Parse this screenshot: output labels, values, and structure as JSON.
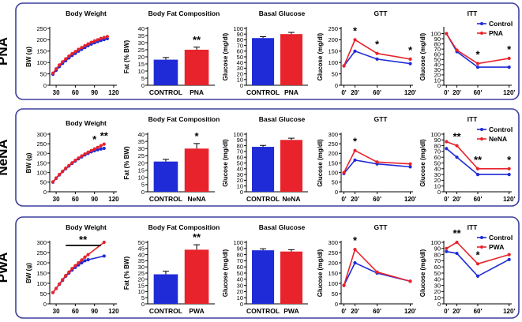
{
  "colors": {
    "control": "#1f2bd6",
    "treated": "#e8232b",
    "border": "#3d3f9e"
  },
  "common": {
    "titles": {
      "bw": "Body Weight",
      "bf": "Body Fat Composition",
      "bg": "Basal Glucose",
      "gtt": "GTT",
      "itt": "ITT"
    },
    "ylabels": {
      "bw": "BW (g)",
      "bf": "Fat (% BW)",
      "glc": "Glucose (mg/dl)"
    },
    "control_label": "CONTROL",
    "legend_control": "Control"
  },
  "chart_data": [
    {
      "group": "PNA",
      "treated_label": "PNA",
      "bw": {
        "type": "line",
        "yticks": [
          "0",
          "50",
          "100",
          "150",
          "200",
          "250"
        ],
        "ylim": [
          0,
          250
        ],
        "xticks": [
          "30",
          "60",
          "90",
          "120"
        ],
        "xlim": [
          20,
          125
        ],
        "x": [
          25,
          30,
          35,
          40,
          45,
          50,
          55,
          60,
          65,
          70,
          75,
          80,
          85,
          90,
          95,
          100,
          105,
          110
        ],
        "control": [
          48,
          66,
          82,
          96,
          108,
          120,
          131,
          140,
          150,
          158,
          166,
          174,
          181,
          187,
          192,
          197,
          201,
          205
        ],
        "treated": [
          53,
          72,
          89,
          103,
          116,
          128,
          139,
          148,
          158,
          166,
          174,
          182,
          189,
          195,
          200,
          206,
          210,
          214
        ],
        "sig": []
      },
      "bf": {
        "type": "bar",
        "yticks": [
          "0",
          "5",
          "10",
          "15",
          "20",
          "25",
          "30",
          "35",
          "40"
        ],
        "ylim": [
          0,
          40
        ],
        "control": 18,
        "control_err": 1.5,
        "treated": 25,
        "treated_err": 1.8,
        "sig": "**"
      },
      "bg": {
        "type": "bar",
        "yticks": [
          "0",
          "10",
          "20",
          "30",
          "40",
          "50",
          "60",
          "70",
          "80",
          "90",
          "100"
        ],
        "ylim": [
          0,
          100
        ],
        "control": 83,
        "control_err": 2.5,
        "treated": 90,
        "treated_err": 3,
        "sig": ""
      },
      "gtt": {
        "type": "line",
        "yticks": [
          "0",
          "50",
          "100",
          "150",
          "200",
          "250"
        ],
        "ylim": [
          0,
          250
        ],
        "xticks": [
          "0'",
          "20'",
          "60'",
          "120'"
        ],
        "xlim": [
          -5,
          125
        ],
        "x": [
          0,
          20,
          60,
          120
        ],
        "control": [
          85,
          150,
          115,
          95
        ],
        "treated": [
          85,
          200,
          140,
          115
        ],
        "sig": [
          "",
          "*",
          "*",
          "*"
        ]
      },
      "itt": {
        "type": "line",
        "yticks": [
          "0",
          "10",
          "20",
          "30",
          "40",
          "50",
          "60",
          "70",
          "80",
          "90",
          "100"
        ],
        "ylim": [
          0,
          110
        ],
        "xticks": [
          "0'",
          "20'",
          "60'",
          "120'"
        ],
        "xlim": [
          -5,
          125
        ],
        "x": [
          0,
          20,
          60,
          120
        ],
        "control": [
          100,
          65,
          35,
          35
        ],
        "treated": [
          100,
          68,
          42,
          52
        ],
        "sig": [
          "",
          "",
          "*",
          "*"
        ]
      }
    },
    {
      "group": "NeNA",
      "treated_label": "NeNA",
      "bw": {
        "type": "line",
        "yticks": [
          "0",
          "50",
          "100",
          "150",
          "200",
          "250",
          "300"
        ],
        "ylim": [
          0,
          300
        ],
        "xticks": [
          "30",
          "60",
          "90",
          "120"
        ],
        "xlim": [
          20,
          125
        ],
        "x": [
          25,
          30,
          35,
          40,
          45,
          50,
          55,
          60,
          65,
          70,
          75,
          80,
          85,
          90,
          95,
          100,
          105
        ],
        "control": [
          50,
          70,
          88,
          105,
          120,
          134,
          148,
          160,
          172,
          182,
          192,
          200,
          208,
          214,
          219,
          223,
          226
        ],
        "treated": [
          52,
          72,
          90,
          107,
          123,
          137,
          151,
          164,
          176,
          187,
          197,
          206,
          215,
          223,
          231,
          240,
          248
        ],
        "sig": [
          {
            "x": 90,
            "label": "*"
          },
          {
            "x": 105,
            "label": "**"
          }
        ]
      },
      "bf": {
        "type": "bar",
        "yticks": [
          "0",
          "5",
          "10",
          "15",
          "20",
          "25",
          "30",
          "35",
          "40"
        ],
        "ylim": [
          0,
          40
        ],
        "control": 21,
        "control_err": 1.5,
        "treated": 30,
        "treated_err": 3.5,
        "sig": "*"
      },
      "bg": {
        "type": "bar",
        "yticks": [
          "0",
          "10",
          "20",
          "30",
          "40",
          "50",
          "60",
          "70",
          "80",
          "90",
          "100"
        ],
        "ylim": [
          0,
          100
        ],
        "control": 78,
        "control_err": 2.5,
        "treated": 90,
        "treated_err": 3,
        "sig": ""
      },
      "gtt": {
        "type": "line",
        "yticks": [
          "0",
          "50",
          "100",
          "150",
          "200",
          "250",
          "300"
        ],
        "ylim": [
          0,
          300
        ],
        "xticks": [
          "0'",
          "20'",
          "60'",
          "120'"
        ],
        "xlim": [
          -5,
          125
        ],
        "x": [
          0,
          20,
          60,
          120
        ],
        "control": [
          95,
          165,
          145,
          130
        ],
        "treated": [
          100,
          215,
          155,
          145
        ],
        "sig": [
          "",
          "*",
          "",
          ""
        ]
      },
      "itt": {
        "type": "line",
        "yticks": [
          "0",
          "10",
          "20",
          "30",
          "40",
          "50",
          "60",
          "70",
          "80",
          "90",
          "100"
        ],
        "ylim": [
          0,
          100
        ],
        "xticks": [
          "0'",
          "20'",
          "60'",
          "120'"
        ],
        "xlim": [
          -5,
          125
        ],
        "x": [
          0,
          20,
          60,
          120
        ],
        "control": [
          75,
          60,
          30,
          30
        ],
        "treated": [
          87,
          80,
          40,
          40
        ],
        "sig": [
          "",
          "**",
          "**",
          "*"
        ]
      }
    },
    {
      "group": "PWA",
      "treated_label": "PWA",
      "bw": {
        "type": "line",
        "yticks": [
          "0",
          "50",
          "100",
          "150",
          "200",
          "250",
          "300"
        ],
        "ylim": [
          0,
          300
        ],
        "xticks": [
          "30",
          "60",
          "90",
          "120"
        ],
        "xlim": [
          20,
          125
        ],
        "x": [
          25,
          30,
          35,
          40,
          45,
          50,
          55,
          60,
          65,
          70,
          75,
          80,
          105
        ],
        "control": [
          55,
          75,
          95,
          115,
          135,
          150,
          165,
          178,
          190,
          200,
          210,
          215,
          233
        ],
        "treated": [
          55,
          75,
          97,
          118,
          138,
          155,
          172,
          186,
          200,
          214,
          228,
          240,
          300
        ],
        "sig": [
          {
            "x": 72,
            "label": "**",
            "bar": [
              45,
              100
            ]
          }
        ]
      },
      "bf": {
        "type": "bar",
        "yticks": [
          "0",
          "5",
          "10",
          "15",
          "20",
          "25",
          "30",
          "35",
          "40",
          "45",
          "50"
        ],
        "ylim": [
          0,
          50
        ],
        "control": 24,
        "control_err": 2.5,
        "treated": 44,
        "treated_err": 4,
        "sig": "**"
      },
      "bg": {
        "type": "bar",
        "yticks": [
          "0",
          "10",
          "20",
          "30",
          "40",
          "50",
          "60",
          "70",
          "80",
          "90",
          "100"
        ],
        "ylim": [
          0,
          100
        ],
        "control": 87,
        "control_err": 2.5,
        "treated": 85,
        "treated_err": 3,
        "sig": ""
      },
      "gtt": {
        "type": "line",
        "yticks": [
          "0",
          "50",
          "100",
          "150",
          "200",
          "250",
          "300"
        ],
        "ylim": [
          0,
          300
        ],
        "xticks": [
          "0'",
          "20'",
          "60'",
          "120'"
        ],
        "xlim": [
          -5,
          125
        ],
        "x": [
          0,
          20,
          60,
          120
        ],
        "control": [
          90,
          200,
          150,
          110
        ],
        "treated": [
          90,
          265,
          155,
          110
        ],
        "sig": [
          "",
          "*",
          "",
          ""
        ]
      },
      "itt": {
        "type": "line",
        "yticks": [
          "0",
          "10",
          "20",
          "30",
          "40",
          "50",
          "60",
          "70",
          "80",
          "90",
          "100"
        ],
        "ylim": [
          0,
          100
        ],
        "xticks": [
          "0'",
          "20'",
          "60'",
          "120'"
        ],
        "xlim": [
          -5,
          125
        ],
        "x": [
          0,
          20,
          60,
          120
        ],
        "control": [
          85,
          82,
          45,
          72
        ],
        "treated": [
          90,
          100,
          65,
          80
        ],
        "sig": [
          "",
          "**",
          "*",
          ""
        ]
      }
    }
  ]
}
